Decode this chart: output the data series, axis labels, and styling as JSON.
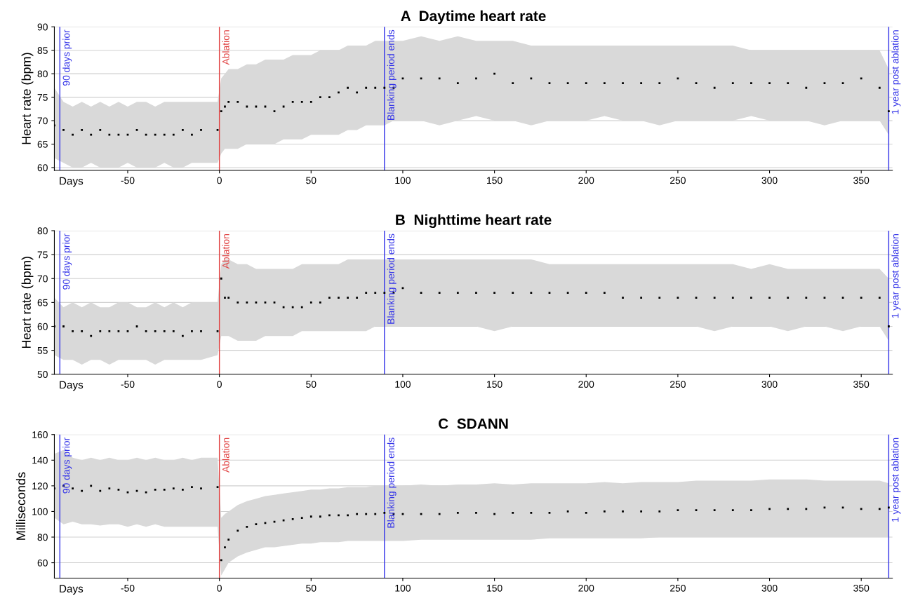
{
  "chart_data": [
    {
      "type": "scatter",
      "title": "A  Daytime heart rate",
      "xlabel": "Days",
      "ylabel": "Heart rate (bpm)",
      "xlim": [
        -90,
        367
      ],
      "xticks": [
        -50,
        0,
        50,
        100,
        150,
        200,
        250,
        300,
        350
      ],
      "ylim": [
        59.4,
        90
      ],
      "yticks": [
        60,
        65,
        70,
        75,
        80,
        85,
        90
      ],
      "grid": "y",
      "marker": "square",
      "x": [
        -90,
        -85,
        -80,
        -75,
        -70,
        -65,
        -60,
        -55,
        -50,
        -45,
        -40,
        -35,
        -30,
        -25,
        -20,
        -15,
        -10,
        -1,
        1,
        3,
        5,
        10,
        15,
        20,
        25,
        30,
        35,
        40,
        45,
        50,
        55,
        60,
        65,
        70,
        75,
        80,
        85,
        90,
        95,
        100,
        110,
        120,
        130,
        140,
        150,
        160,
        170,
        180,
        190,
        200,
        210,
        220,
        230,
        240,
        250,
        260,
        270,
        280,
        290,
        300,
        310,
        320,
        330,
        340,
        350,
        360,
        365
      ],
      "series": [
        {
          "color": "#000000",
          "values": [
            69,
            68,
            67,
            68,
            67,
            68,
            67,
            67,
            67,
            68,
            67,
            67,
            67,
            67,
            68,
            67,
            68,
            68,
            72,
            73,
            74,
            74,
            73,
            73,
            73,
            72,
            73,
            74,
            74,
            74,
            75,
            75,
            76,
            77,
            76,
            77,
            77,
            77,
            77,
            79,
            79,
            79,
            78,
            79,
            80,
            78,
            79,
            78,
            78,
            78,
            78,
            78,
            78,
            78,
            79,
            78,
            77,
            78,
            78,
            78,
            78,
            77,
            78,
            78,
            79,
            77,
            72
          ],
          "lower": [
            62,
            61,
            60,
            60,
            61,
            60,
            60,
            60,
            61,
            60,
            60,
            60,
            61,
            60,
            60,
            61,
            61,
            61,
            63,
            64,
            64,
            64,
            65,
            65,
            65,
            65,
            66,
            66,
            66,
            67,
            67,
            67,
            67,
            68,
            68,
            69,
            69,
            69,
            70,
            70,
            70,
            69,
            70,
            71,
            70,
            70,
            69,
            70,
            70,
            70,
            71,
            70,
            70,
            69,
            70,
            70,
            70,
            70,
            71,
            70,
            70,
            70,
            69,
            70,
            70,
            70,
            67
          ],
          "upper": [
            77,
            74,
            73,
            74,
            73,
            74,
            73,
            74,
            73,
            74,
            74,
            73,
            74,
            74,
            74,
            74,
            74,
            74,
            79,
            80,
            81,
            81,
            82,
            82,
            83,
            83,
            83,
            84,
            84,
            84,
            85,
            85,
            85,
            86,
            86,
            86,
            87,
            87,
            87,
            87,
            88,
            87,
            88,
            87,
            87,
            87,
            86,
            86,
            86,
            86,
            86,
            86,
            86,
            86,
            86,
            86,
            86,
            86,
            85,
            85,
            85,
            85,
            85,
            85,
            85,
            85,
            81
          ]
        }
      ],
      "ref_lines": [
        {
          "axis": "x",
          "value": -87,
          "label": "90 days prior",
          "color": "#3535e8"
        },
        {
          "axis": "x",
          "value": 0,
          "label": "Ablation",
          "color": "#e04040"
        },
        {
          "axis": "x",
          "value": 90,
          "label": "Blanking period ends",
          "color": "#3535e8"
        },
        {
          "axis": "x",
          "value": 365,
          "label": "1 year post ablation",
          "color": "#3535e8"
        }
      ]
    },
    {
      "type": "scatter",
      "title": "B  Nighttime heart rate",
      "xlabel": "Days",
      "ylabel": "Heart rate (bpm)",
      "xlim": [
        -90,
        367
      ],
      "xticks": [
        -50,
        0,
        50,
        100,
        150,
        200,
        250,
        300,
        350
      ],
      "ylim": [
        50,
        80
      ],
      "yticks": [
        50,
        55,
        60,
        65,
        70,
        75,
        80
      ],
      "grid": "y",
      "marker": "square",
      "x": [
        -90,
        -85,
        -80,
        -75,
        -70,
        -65,
        -60,
        -55,
        -50,
        -45,
        -40,
        -35,
        -30,
        -25,
        -20,
        -15,
        -10,
        -1,
        1,
        3,
        5,
        10,
        15,
        20,
        25,
        30,
        35,
        40,
        45,
        50,
        55,
        60,
        65,
        70,
        75,
        80,
        85,
        90,
        95,
        100,
        110,
        120,
        130,
        140,
        150,
        160,
        170,
        180,
        190,
        200,
        210,
        220,
        230,
        240,
        250,
        260,
        270,
        280,
        290,
        300,
        310,
        320,
        330,
        340,
        350,
        360,
        365
      ],
      "series": [
        {
          "color": "#000000",
          "values": [
            60,
            60,
            59,
            59,
            58,
            59,
            59,
            59,
            59,
            60,
            59,
            59,
            59,
            59,
            58,
            59,
            59,
            59,
            70,
            66,
            66,
            65,
            65,
            65,
            65,
            65,
            64,
            64,
            64,
            65,
            65,
            66,
            66,
            66,
            66,
            67,
            67,
            67,
            67,
            68,
            67,
            67,
            67,
            67,
            67,
            67,
            67,
            67,
            67,
            67,
            67,
            66,
            66,
            66,
            66,
            66,
            66,
            66,
            66,
            66,
            66,
            66,
            66,
            66,
            66,
            66,
            60
          ],
          "lower": [
            54,
            53,
            53,
            52,
            53,
            53,
            52,
            53,
            53,
            53,
            53,
            52,
            53,
            53,
            53,
            53,
            53,
            54,
            58,
            58,
            58,
            57,
            57,
            57,
            58,
            58,
            58,
            58,
            59,
            59,
            59,
            59,
            59,
            59,
            59,
            59,
            60,
            60,
            60,
            60,
            60,
            60,
            60,
            60,
            59,
            60,
            60,
            60,
            60,
            60,
            60,
            60,
            60,
            60,
            60,
            60,
            59,
            60,
            60,
            60,
            59,
            60,
            60,
            59,
            60,
            60,
            57
          ],
          "upper": [
            66,
            64,
            65,
            64,
            65,
            64,
            64,
            65,
            65,
            64,
            64,
            65,
            64,
            65,
            64,
            65,
            65,
            65,
            73,
            74,
            74,
            73,
            73,
            72,
            72,
            72,
            72,
            72,
            73,
            73,
            73,
            73,
            73,
            74,
            74,
            74,
            74,
            74,
            74,
            74,
            74,
            74,
            74,
            74,
            74,
            74,
            74,
            73,
            73,
            73,
            73,
            73,
            73,
            73,
            73,
            73,
            73,
            73,
            72,
            73,
            72,
            72,
            72,
            72,
            72,
            72,
            70
          ]
        }
      ],
      "ref_lines": [
        {
          "axis": "x",
          "value": -87,
          "label": "90 days prior",
          "color": "#3535e8"
        },
        {
          "axis": "x",
          "value": 0,
          "label": "Ablation",
          "color": "#e04040"
        },
        {
          "axis": "x",
          "value": 90,
          "label": "Blanking period ends",
          "color": "#3535e8"
        },
        {
          "axis": "x",
          "value": 365,
          "label": "1 year post ablation",
          "color": "#3535e8"
        }
      ]
    },
    {
      "type": "scatter",
      "title": "C  SDANN",
      "xlabel": "Days",
      "ylabel": "Milliseconds",
      "xlim": [
        -90,
        367
      ],
      "xticks": [
        -50,
        0,
        50,
        100,
        150,
        200,
        250,
        300,
        350
      ],
      "ylim": [
        48,
        160
      ],
      "yticks": [
        60,
        80,
        100,
        120,
        140,
        160
      ],
      "grid": "y",
      "marker": "square",
      "x": [
        -90,
        -85,
        -80,
        -75,
        -70,
        -65,
        -60,
        -55,
        -50,
        -45,
        -40,
        -35,
        -30,
        -25,
        -20,
        -15,
        -10,
        -1,
        1,
        3,
        5,
        10,
        15,
        20,
        25,
        30,
        35,
        40,
        45,
        50,
        55,
        60,
        65,
        70,
        75,
        80,
        85,
        90,
        95,
        100,
        110,
        120,
        130,
        140,
        150,
        160,
        170,
        180,
        190,
        200,
        210,
        220,
        230,
        240,
        250,
        260,
        270,
        280,
        290,
        300,
        310,
        320,
        330,
        340,
        350,
        360,
        365
      ],
      "series": [
        {
          "color": "#000000",
          "values": [
            118,
            120,
            118,
            116,
            120,
            116,
            118,
            117,
            115,
            116,
            115,
            117,
            117,
            118,
            117,
            119,
            118,
            119,
            62,
            72,
            78,
            85,
            88,
            90,
            91,
            92,
            93,
            94,
            95,
            96,
            96,
            97,
            97,
            97,
            98,
            98,
            98,
            99,
            98,
            98,
            98,
            98,
            99,
            99,
            98,
            99,
            99,
            99,
            100,
            99,
            100,
            100,
            100,
            100,
            101,
            101,
            101,
            101,
            101,
            102,
            102,
            102,
            103,
            103,
            102,
            102,
            103
          ],
          "lower": [
            95,
            90,
            92,
            90,
            90,
            89,
            90,
            90,
            88,
            90,
            88,
            90,
            88,
            88,
            88,
            88,
            88,
            88,
            50,
            55,
            60,
            65,
            68,
            70,
            72,
            72,
            73,
            74,
            75,
            75,
            76,
            76,
            76,
            77,
            77,
            77,
            77,
            77,
            77,
            77,
            78,
            78,
            78,
            78,
            78,
            78,
            78,
            79,
            79,
            79,
            79,
            79,
            79,
            80,
            80,
            80,
            80,
            80,
            80,
            80,
            80,
            80,
            80,
            80,
            80,
            80,
            80
          ],
          "upper": [
            145,
            148,
            142,
            140,
            142,
            140,
            142,
            140,
            140,
            142,
            140,
            142,
            140,
            140,
            142,
            140,
            142,
            142,
            95,
            98,
            100,
            105,
            108,
            110,
            112,
            113,
            114,
            115,
            116,
            117,
            117,
            118,
            118,
            119,
            119,
            119,
            120,
            120,
            120,
            120,
            121,
            120,
            121,
            121,
            122,
            121,
            122,
            122,
            122,
            122,
            123,
            122,
            123,
            123,
            123,
            124,
            124,
            124,
            124,
            125,
            125,
            125,
            124,
            124,
            124,
            124,
            122
          ]
        }
      ],
      "ref_lines": [
        {
          "axis": "x",
          "value": -87,
          "label": "90 days prior",
          "color": "#3535e8"
        },
        {
          "axis": "x",
          "value": 0,
          "label": "Ablation",
          "color": "#e04040"
        },
        {
          "axis": "x",
          "value": 90,
          "label": "Blanking period ends",
          "color": "#3535e8"
        },
        {
          "axis": "x",
          "value": 365,
          "label": "1 year post ablation",
          "color": "#3535e8"
        }
      ]
    }
  ]
}
